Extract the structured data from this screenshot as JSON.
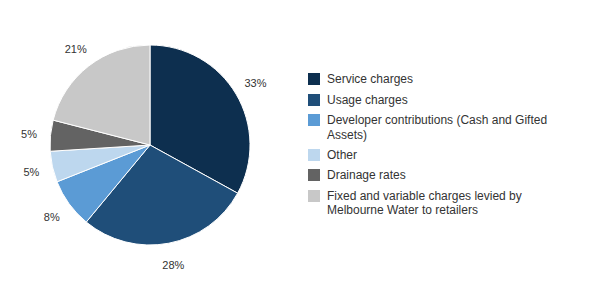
{
  "chart_data": {
    "type": "pie",
    "categories": [
      "Service charges",
      "Usage charges",
      "Developer contributions (Cash and Gifted\nAssets)",
      "Other",
      "Drainage rates",
      "Fixed and variable charges levied by\nMelbourne Water to retailers"
    ],
    "values": [
      33,
      28,
      8,
      5,
      5,
      21
    ],
    "value_labels": [
      "33%",
      "28%",
      "8%",
      "5%",
      "5%",
      "21%"
    ],
    "colors": [
      "#0d2f4f",
      "#1f4e79",
      "#5b9bd5",
      "#bdd7ee",
      "#636363",
      "#c8c8c8"
    ],
    "data_labels": true,
    "legend": "right"
  }
}
